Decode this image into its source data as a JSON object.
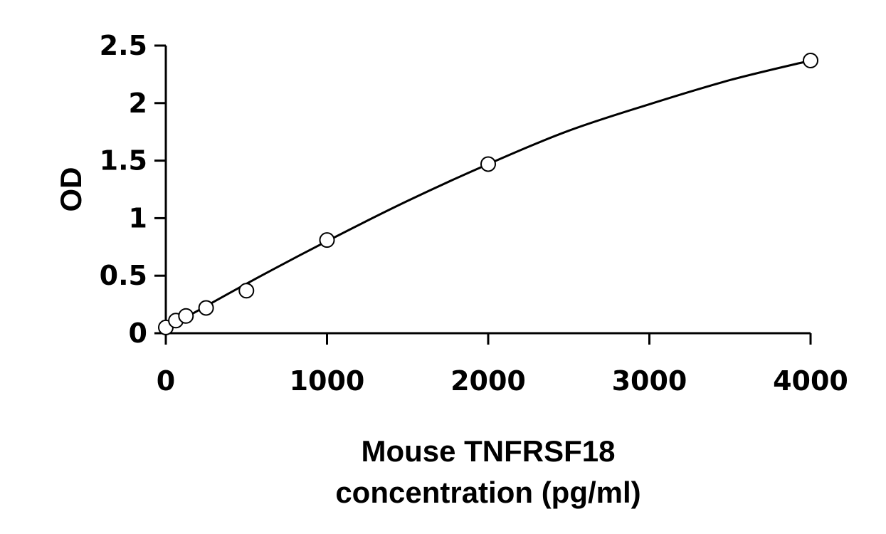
{
  "chart_data": {
    "type": "scatter",
    "title": "",
    "xlabel_lines": [
      "Mouse TNFRSF18",
      "concentration (pg/ml)"
    ],
    "ylabel": "OD",
    "xlim": [
      0,
      4000
    ],
    "ylim": [
      0,
      2.5
    ],
    "x_ticks": [
      0,
      1000,
      2000,
      3000,
      4000
    ],
    "x_tick_labels": [
      "0",
      "1000",
      "2000",
      "3000",
      "4000"
    ],
    "y_ticks": [
      0,
      0.5,
      1,
      1.5,
      2,
      2.5
    ],
    "y_tick_labels": [
      "0",
      "0.5",
      "1",
      "1.5",
      "2",
      "2.5"
    ],
    "grid": false,
    "legend": "none",
    "series": [
      {
        "marker": "open-circle",
        "x": [
          0,
          62.5,
          125,
          250,
          500,
          1000,
          2000,
          4000
        ],
        "y": [
          0.05,
          0.11,
          0.15,
          0.22,
          0.37,
          0.81,
          1.47,
          2.37
        ]
      }
    ],
    "fit_curve": {
      "kind": "smooth-standard-curve",
      "x": [
        0,
        500,
        1000,
        1500,
        2000,
        2500,
        3000,
        3500,
        4000
      ],
      "y": [
        0.04,
        0.43,
        0.8,
        1.15,
        1.47,
        1.76,
        1.99,
        2.2,
        2.37
      ]
    }
  }
}
